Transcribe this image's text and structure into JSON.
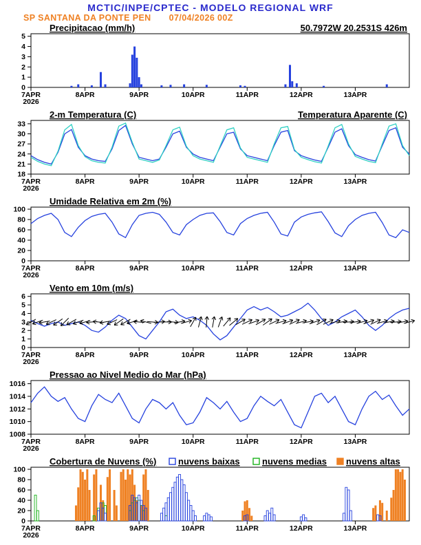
{
  "header": {
    "title": "MCTIC/INPE/CPTEC - MODELO REGIONAL WRF",
    "station": "SP SANTANA DA PONTE PEN",
    "run": "07/04/2026 00Z",
    "coords": "50.7972W 20.2531S 426m"
  },
  "colors": {
    "header_blue": "#2929cc",
    "orange": "#ef8123",
    "line_blue": "#2541de",
    "cyan": "#2fd1c4",
    "green": "#19b219",
    "black": "#000000"
  },
  "x_axis": {
    "hours_max": 168,
    "tick_hours": [
      0,
      24,
      48,
      72,
      96,
      120,
      144
    ],
    "tick_labels": [
      "7APR",
      "8APR",
      "9APR",
      "10APR",
      "11APR",
      "12APR",
      "13APR"
    ],
    "year_label": "2026"
  },
  "chart_data": [
    {
      "id": "precip",
      "type": "bar",
      "title": "Precipitacao (mm/h)",
      "right_title": "50.7972W 20.2531S 426m",
      "right_title_color": "#ef8123",
      "ylim": [
        0,
        5.25
      ],
      "yticks": [
        0,
        1,
        2,
        3,
        4,
        5
      ],
      "bar_color": "#2541de",
      "bars": [
        [
          18,
          0.15
        ],
        [
          21,
          0.3
        ],
        [
          27,
          0.2
        ],
        [
          31,
          1.5
        ],
        [
          33,
          0.3
        ],
        [
          44,
          0.4
        ],
        [
          45,
          3.2
        ],
        [
          46,
          4.0
        ],
        [
          47,
          2.9
        ],
        [
          48,
          1.0
        ],
        [
          49,
          0.3
        ],
        [
          58,
          0.2
        ],
        [
          62,
          0.25
        ],
        [
          68,
          0.3
        ],
        [
          78,
          0.25
        ],
        [
          93,
          0.2
        ],
        [
          95,
          0.15
        ],
        [
          113,
          0.3
        ],
        [
          115,
          2.2
        ],
        [
          116,
          0.6
        ],
        [
          118,
          0.4
        ],
        [
          130,
          0.15
        ],
        [
          158,
          0.3
        ]
      ]
    },
    {
      "id": "temp",
      "type": "line",
      "title": "2-m Temperatura (C)",
      "right_title": "Temperatura Aparente (C)",
      "right_title_color": "#2fd1c4",
      "ylim": [
        18,
        34
      ],
      "yticks": [
        18,
        21,
        24,
        27,
        30,
        33
      ],
      "series": [
        {
          "name": "2-m Temperatura (C)",
          "color": "#2541de",
          "x0": 0,
          "dx": 3,
          "y": [
            23.5,
            22.3,
            21.5,
            21.0,
            24.5,
            30.0,
            31.3,
            26.0,
            23.5,
            22.5,
            22.0,
            21.8,
            25.5,
            31.0,
            32.5,
            27.0,
            23.0,
            22.5,
            22.0,
            22.5,
            26.0,
            30.0,
            30.8,
            26.0,
            24.0,
            23.0,
            22.5,
            22.0,
            26.0,
            30.0,
            30.5,
            25.5,
            23.5,
            23.0,
            22.5,
            22.0,
            26.5,
            30.5,
            31.0,
            25.0,
            23.5,
            22.8,
            22.2,
            21.8,
            26.0,
            30.5,
            31.5,
            26.5,
            23.8,
            23.0,
            22.3,
            21.9,
            26.5,
            31.0,
            31.8,
            26.0,
            24.0
          ]
        },
        {
          "name": "Temperatura Aparente (C)",
          "color": "#2fd1c4",
          "x0": 0,
          "dx": 3,
          "y": [
            23.0,
            21.8,
            21.0,
            20.5,
            24.8,
            31.2,
            32.8,
            26.5,
            23.2,
            22.0,
            21.5,
            21.3,
            26.0,
            32.3,
            33.2,
            27.5,
            22.5,
            22.0,
            21.5,
            22.2,
            26.5,
            31.2,
            32.0,
            26.3,
            23.5,
            22.5,
            22.0,
            21.5,
            26.4,
            31.2,
            31.8,
            25.8,
            23.0,
            22.5,
            22.0,
            21.5,
            27.0,
            31.8,
            32.2,
            25.3,
            23.0,
            22.3,
            21.7,
            21.3,
            26.4,
            31.8,
            32.8,
            27.0,
            23.3,
            22.5,
            21.8,
            21.4,
            27.0,
            32.3,
            33.0,
            26.5,
            23.5
          ]
        }
      ]
    },
    {
      "id": "rh",
      "type": "line",
      "title": "Umidade Relativa em 2m (%)",
      "ylim": [
        0,
        104
      ],
      "yticks": [
        0,
        20,
        40,
        60,
        80,
        100
      ],
      "series": [
        {
          "name": "Umidade Relativa em 2m",
          "color": "#2541de",
          "x0": 0,
          "dx": 3,
          "y": [
            72,
            82,
            88,
            92,
            80,
            55,
            47,
            65,
            78,
            86,
            90,
            92,
            75,
            52,
            45,
            70,
            88,
            92,
            94,
            90,
            75,
            55,
            50,
            70,
            80,
            88,
            92,
            93,
            76,
            55,
            50,
            72,
            82,
            88,
            92,
            94,
            75,
            52,
            48,
            75,
            85,
            90,
            93,
            95,
            76,
            54,
            47,
            68,
            80,
            88,
            92,
            94,
            74,
            50,
            45,
            60,
            55
          ]
        }
      ]
    },
    {
      "id": "wind",
      "type": "wind",
      "title": "Vento em 10m (m/s)",
      "ylim": [
        0,
        6.3
      ],
      "yticks": [
        0,
        1,
        2,
        3,
        4,
        5,
        6
      ],
      "series": [
        {
          "name": "Velocidade do Vento 10m",
          "color": "#2541de",
          "x0": 0,
          "dx": 3,
          "y": [
            3.2,
            2.8,
            2.5,
            2.8,
            3.0,
            2.6,
            2.8,
            3.0,
            2.6,
            2.0,
            1.8,
            2.4,
            3.2,
            3.8,
            3.4,
            2.4,
            1.4,
            1.0,
            2.0,
            3.0,
            4.2,
            4.5,
            3.8,
            3.4,
            3.6,
            3.2,
            2.6,
            1.6,
            0.9,
            1.4,
            2.4,
            3.4,
            4.4,
            4.8,
            4.4,
            4.7,
            4.2,
            3.6,
            3.8,
            4.2,
            4.6,
            5.2,
            4.4,
            3.4,
            2.6,
            3.0,
            3.6,
            4.0,
            4.4,
            3.6,
            2.6,
            2.0,
            2.6,
            3.4,
            4.0,
            4.4,
            4.6
          ]
        }
      ],
      "arrows": {
        "color": "#000000",
        "y_center": 3,
        "x0": 0,
        "dx": 3,
        "dirs_deg": [
          150,
          160,
          170,
          155,
          145,
          135,
          150,
          160,
          165,
          175,
          185,
          170,
          155,
          145,
          150,
          165,
          185,
          195,
          5,
          355,
          0,
          5,
          350,
          345,
          300,
          285,
          275,
          280,
          290,
          310,
          320,
          330,
          335,
          340,
          330,
          325,
          335,
          345,
          340,
          335,
          345,
          350,
          340,
          330,
          335,
          345,
          350,
          355,
          350,
          345,
          340,
          335,
          345,
          350,
          355,
          350,
          345
        ]
      }
    },
    {
      "id": "pressure",
      "type": "line",
      "title": "Pressao ao Nivel Medio do Mar (hPa)",
      "ylim": [
        1008,
        1016.5
      ],
      "yticks": [
        1008,
        1010,
        1012,
        1014,
        1016
      ],
      "series": [
        {
          "name": "Pressao ao Nivel Medio do Mar",
          "color": "#2541de",
          "x0": 0,
          "dx": 3,
          "y": [
            1013.0,
            1014.5,
            1015.5,
            1014.0,
            1013.2,
            1013.8,
            1012.0,
            1010.5,
            1010.0,
            1012.5,
            1014.3,
            1013.5,
            1013.0,
            1014.5,
            1012.5,
            1010.5,
            1009.8,
            1012.0,
            1013.5,
            1013.0,
            1012.0,
            1013.0,
            1011.0,
            1009.5,
            1009.8,
            1011.5,
            1013.8,
            1013.0,
            1012.0,
            1013.2,
            1011.5,
            1010.0,
            1010.5,
            1012.5,
            1014.0,
            1013.2,
            1012.5,
            1013.5,
            1011.5,
            1009.5,
            1009.0,
            1011.5,
            1014.0,
            1014.5,
            1013.0,
            1014.0,
            1012.0,
            1010.0,
            1009.5,
            1012.0,
            1014.0,
            1014.8,
            1013.5,
            1014.2,
            1012.5,
            1011.0,
            1012.0
          ]
        }
      ]
    },
    {
      "id": "clouds",
      "type": "cloudbar",
      "title": "Cobertura de Nuvens (%)",
      "legend": [
        {
          "label": "nuvens baixas",
          "color": "#2541de",
          "filled": false
        },
        {
          "label": "nuvens medias",
          "color": "#19b219",
          "filled": false
        },
        {
          "label": "nuvens altas",
          "color": "#ef8123",
          "filled": true
        }
      ],
      "ylim": [
        0,
        104
      ],
      "yticks": [
        0,
        20,
        40,
        60,
        80,
        100
      ],
      "series": [
        {
          "name": "nuvens altas",
          "color": "#ef8123",
          "filled": true,
          "bars": [
            [
              20,
              30
            ],
            [
              21,
              65
            ],
            [
              22,
              100
            ],
            [
              23,
              95
            ],
            [
              24,
              80
            ],
            [
              25,
              100
            ],
            [
              26,
              60
            ],
            [
              28,
              90
            ],
            [
              29,
              100
            ],
            [
              31,
              70
            ],
            [
              32,
              40
            ],
            [
              34,
              85
            ],
            [
              35,
              100
            ],
            [
              37,
              60
            ],
            [
              38,
              30
            ],
            [
              40,
              95
            ],
            [
              41,
              100
            ],
            [
              42,
              80
            ],
            [
              43,
              100
            ],
            [
              44,
              90
            ],
            [
              45,
              100
            ],
            [
              46,
              70
            ],
            [
              47,
              40
            ],
            [
              49,
              30
            ],
            [
              50,
              90
            ],
            [
              51,
              100
            ],
            [
              52,
              60
            ],
            [
              94,
              20
            ],
            [
              95,
              38
            ],
            [
              96,
              40
            ],
            [
              97,
              25
            ],
            [
              98,
              10
            ],
            [
              152,
              25
            ],
            [
              153,
              30
            ],
            [
              155,
              40
            ],
            [
              156,
              35
            ],
            [
              158,
              20
            ],
            [
              160,
              45
            ],
            [
              161,
              60
            ],
            [
              162,
              100
            ],
            [
              163,
              100
            ],
            [
              164,
              95
            ],
            [
              165,
              100
            ],
            [
              166,
              80
            ]
          ]
        },
        {
          "name": "nuvens medias",
          "color": "#19b219",
          "filled": false,
          "bars": [
            [
              2,
              50
            ],
            [
              3,
              20
            ],
            [
              28,
              10
            ],
            [
              30,
              25
            ],
            [
              32,
              35
            ],
            [
              33,
              30
            ],
            [
              44,
              20
            ],
            [
              45,
              35
            ],
            [
              46,
              40
            ],
            [
              47,
              45
            ],
            [
              48,
              40
            ],
            [
              49,
              30
            ],
            [
              50,
              20
            ],
            [
              60,
              10
            ]
          ]
        },
        {
          "name": "nuvens baixas",
          "color": "#2541de",
          "filled": false,
          "bars": [
            [
              30,
              20
            ],
            [
              31,
              35
            ],
            [
              32,
              25
            ],
            [
              33,
              15
            ],
            [
              44,
              30
            ],
            [
              45,
              50
            ],
            [
              46,
              45
            ],
            [
              47,
              35
            ],
            [
              48,
              50
            ],
            [
              49,
              40
            ],
            [
              50,
              30
            ],
            [
              51,
              25
            ],
            [
              58,
              15
            ],
            [
              59,
              25
            ],
            [
              60,
              35
            ],
            [
              61,
              45
            ],
            [
              62,
              55
            ],
            [
              63,
              65
            ],
            [
              64,
              75
            ],
            [
              65,
              85
            ],
            [
              66,
              90
            ],
            [
              67,
              80
            ],
            [
              68,
              70
            ],
            [
              69,
              55
            ],
            [
              70,
              40
            ],
            [
              71,
              30
            ],
            [
              72,
              20
            ],
            [
              73,
              10
            ],
            [
              77,
              10
            ],
            [
              78,
              15
            ],
            [
              79,
              12
            ],
            [
              80,
              8
            ],
            [
              95,
              10
            ],
            [
              96,
              12
            ],
            [
              104,
              10
            ],
            [
              105,
              20
            ],
            [
              106,
              15
            ],
            [
              107,
              25
            ],
            [
              108,
              12
            ],
            [
              120,
              8
            ],
            [
              121,
              12
            ],
            [
              122,
              6
            ],
            [
              139,
              15
            ],
            [
              140,
              65
            ],
            [
              141,
              60
            ],
            [
              142,
              20
            ],
            [
              154,
              12
            ],
            [
              155,
              10
            ]
          ]
        }
      ]
    }
  ]
}
